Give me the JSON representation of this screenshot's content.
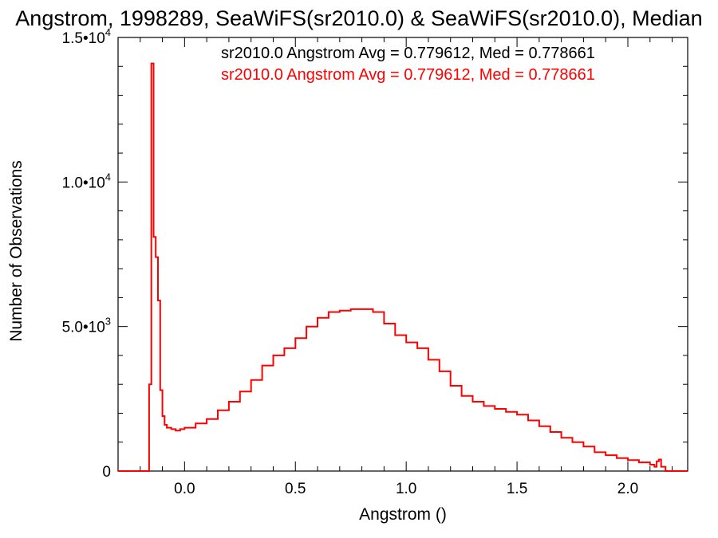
{
  "chart_data": {
    "type": "histogram",
    "title": "Angstrom, 1998289, SeaWiFS(sr2010.0) & SeaWiFS(sr2010.0), Median",
    "xlabel": "Angstrom ()",
    "ylabel": "Number of Observations",
    "xlim": [
      -0.3,
      2.27
    ],
    "ylim": [
      0,
      15000
    ],
    "x_ticks": [
      {
        "value": 0.0,
        "label": "0.0"
      },
      {
        "value": 0.5,
        "label": "0.5"
      },
      {
        "value": 1.0,
        "label": "1.0"
      },
      {
        "value": 1.5,
        "label": "1.5"
      },
      {
        "value": 2.0,
        "label": "2.0"
      }
    ],
    "y_ticks": [
      {
        "value": 0,
        "mantissa": "0",
        "exp": ""
      },
      {
        "value": 5000,
        "mantissa": "5.0•10",
        "exp": "3"
      },
      {
        "value": 10000,
        "mantissa": "1.0•10",
        "exp": "4"
      },
      {
        "value": 15000,
        "mantissa": "1.5•10",
        "exp": "4"
      }
    ],
    "annotations": [
      {
        "text": "sr2010.0 Angstrom Avg = 0.779612, Med = 0.778661",
        "color": "#000000"
      },
      {
        "text": "sr2010.0 Angstrom Avg = 0.779612, Med = 0.778661",
        "color": "#ff0000"
      }
    ],
    "series": [
      {
        "color": "#ff0000",
        "x": [
          -0.3,
          -0.2,
          -0.16,
          -0.15,
          -0.14,
          -0.13,
          -0.12,
          -0.11,
          -0.1,
          -0.09,
          -0.08,
          -0.06,
          -0.04,
          -0.02,
          0.0,
          0.05,
          0.1,
          0.15,
          0.2,
          0.25,
          0.3,
          0.35,
          0.4,
          0.45,
          0.5,
          0.55,
          0.6,
          0.65,
          0.7,
          0.75,
          0.8,
          0.85,
          0.9,
          0.95,
          1.0,
          1.05,
          1.1,
          1.15,
          1.2,
          1.25,
          1.3,
          1.35,
          1.4,
          1.45,
          1.5,
          1.55,
          1.6,
          1.65,
          1.7,
          1.75,
          1.8,
          1.85,
          1.9,
          1.95,
          2.0,
          2.05,
          2.1,
          2.12,
          2.13,
          2.14,
          2.15,
          2.17,
          2.27
        ],
        "y": [
          0,
          0,
          3000,
          14100,
          8100,
          7400,
          5900,
          2800,
          1900,
          1600,
          1500,
          1450,
          1400,
          1450,
          1500,
          1650,
          1800,
          2100,
          2400,
          2750,
          3150,
          3650,
          4000,
          4250,
          4600,
          5000,
          5300,
          5500,
          5550,
          5600,
          5600,
          5500,
          5100,
          4700,
          4450,
          4250,
          3850,
          3450,
          2950,
          2600,
          2400,
          2250,
          2150,
          2050,
          1950,
          1750,
          1550,
          1350,
          1150,
          1000,
          850,
          650,
          550,
          450,
          380,
          300,
          220,
          150,
          340,
          400,
          150,
          0,
          0
        ]
      }
    ]
  }
}
